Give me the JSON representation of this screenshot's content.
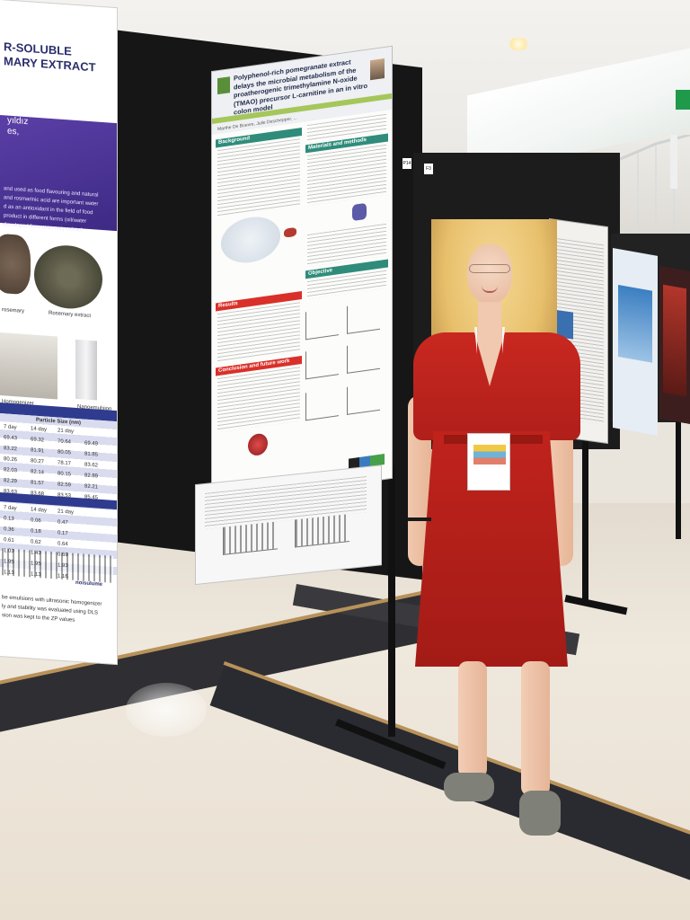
{
  "scene": {
    "description_colors": {
      "dress": "#b82219",
      "hair": "#e8c06c",
      "board": "#161616",
      "floor_inlay": "#2f2f33"
    }
  },
  "poster_left": {
    "title": "R-SOLUBLE\nMARY EXTRACT",
    "author_lines": [
      "yıldız",
      "es,"
    ],
    "body_lines": [
      "and used as food flavouring and natural",
      "and rosmarinic acid are important water",
      "d as an antioxidant in the field of food",
      "product in different forms (oil/water",
      "developed from rosemary extract"
    ],
    "caption_1": "rosemary",
    "caption_2": "Rosemary extract",
    "caption_3": "Homogenizer",
    "caption_4": "Nanoemulsion",
    "table_header": "Particle Size (nm)",
    "table_rows": [
      [
        "7 day",
        "14 day",
        "21 day"
      ],
      [
        "69.43",
        "69.32",
        "70.64",
        "69.49"
      ],
      [
        "83.22",
        "81.91",
        "80.05",
        "81.85"
      ],
      [
        "80.26",
        "80.27",
        "78.17",
        "83.62"
      ],
      [
        "82.03",
        "82.14",
        "80.15",
        "82.89"
      ],
      [
        "82.29",
        "81.57",
        "82.59",
        "82.21"
      ],
      [
        "83.63",
        "83.68",
        "83.53",
        "85.45"
      ]
    ],
    "table2_rows": [
      [
        "7 day",
        "14 day",
        "21 day"
      ],
      [
        "0.13",
        "0.06",
        "0.47"
      ],
      [
        "0.36",
        "0.18",
        "0.17"
      ],
      [
        "0.61",
        "0.62",
        "0.64"
      ],
      [
        "1.03",
        "1.43",
        "0.69"
      ],
      [
        "1.95",
        "1.95",
        "1.93"
      ],
      [
        "1.13",
        "1.13",
        "1.16"
      ]
    ],
    "chart_label": "noisulume",
    "footer_lines": [
      "be emulsions with ultrasonic homogenizer",
      "ly and stability was evaluated using DLS",
      "sion was kept to the ZP values"
    ]
  },
  "poster_main": {
    "title": "Polyphenol-rich pomegranate extract delays the microbial metabolism of the proatherogenic trimethylamine N-oxide (TMAO) precursor L-carnitine in an in vitro colon model",
    "authors": "Marthe De Boevre, Julie Deschepper, ...",
    "sections": {
      "background": "Background",
      "materials": "Materials and methods",
      "objective": "Objective",
      "results": "Results",
      "conclusion": "Conclusion and future work"
    },
    "board_tag": "P14"
  },
  "poster_side_tag": "F3"
}
